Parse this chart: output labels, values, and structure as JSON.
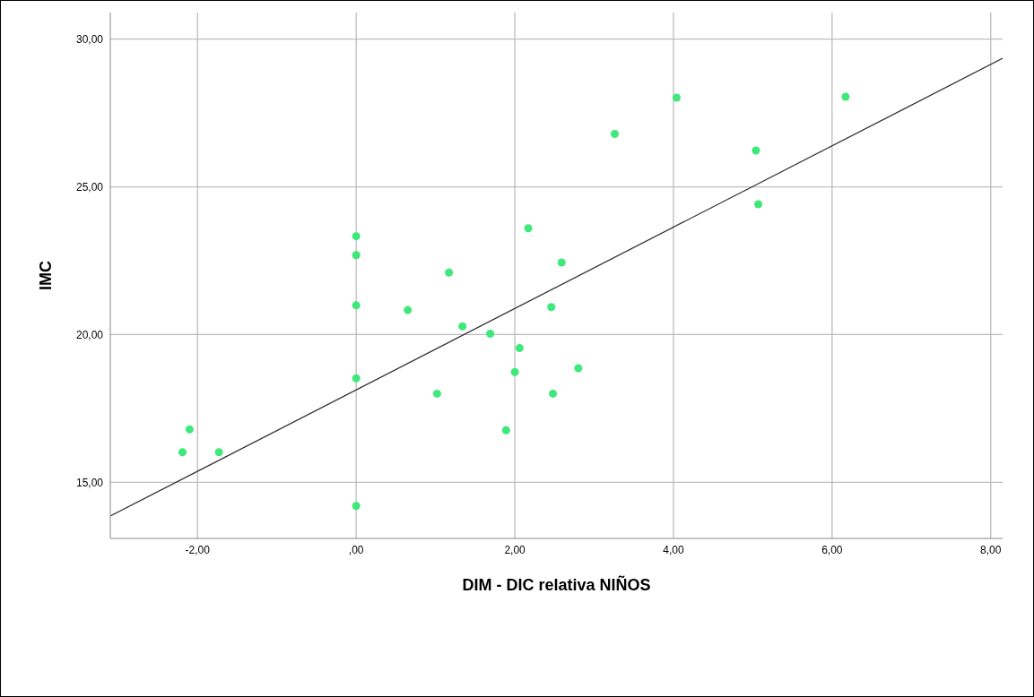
{
  "chart_data": {
    "type": "scatter",
    "xlabel": "DIM - DIC relativa NIÑOS",
    "ylabel": "IMC",
    "xlim": [
      -3.1,
      8.15
    ],
    "ylim": [
      13.1,
      30.9
    ],
    "xticks": [
      {
        "value": -2,
        "label": "-2,00"
      },
      {
        "value": 0,
        "label": ",00"
      },
      {
        "value": 2,
        "label": "2,00"
      },
      {
        "value": 4,
        "label": "4,00"
      },
      {
        "value": 6,
        "label": "6,00"
      },
      {
        "value": 8,
        "label": "8,00"
      }
    ],
    "yticks": [
      {
        "value": 15,
        "label": "15,00"
      },
      {
        "value": 20,
        "label": "20,00"
      },
      {
        "value": 25,
        "label": "25,00"
      },
      {
        "value": 30,
        "label": "30,00"
      }
    ],
    "grid": true,
    "series": [
      {
        "marker": "circle",
        "color": "#3ee87a",
        "x": [
          -2.19,
          -2.1,
          -1.73,
          0,
          0,
          0,
          0,
          0,
          0.65,
          1.02,
          1.17,
          1.34,
          1.69,
          1.89,
          2.0,
          2.06,
          2.17,
          2.59,
          2.46,
          2.48,
          2.8,
          3.26,
          4.04,
          5.04,
          5.07,
          6.17
        ],
        "values": [
          16.02,
          16.79,
          16.02,
          23.33,
          22.69,
          20.99,
          18.52,
          14.2,
          20.83,
          18.0,
          22.1,
          20.28,
          20.03,
          16.76,
          18.73,
          19.54,
          23.6,
          22.44,
          20.93,
          18.0,
          18.86,
          26.79,
          28.02,
          26.23,
          24.41,
          28.05
        ]
      },
      {
        "type": "line",
        "color": "#333333",
        "x": [
          -3.1,
          8.15
        ],
        "values": [
          13.86,
          29.35
        ]
      }
    ]
  }
}
